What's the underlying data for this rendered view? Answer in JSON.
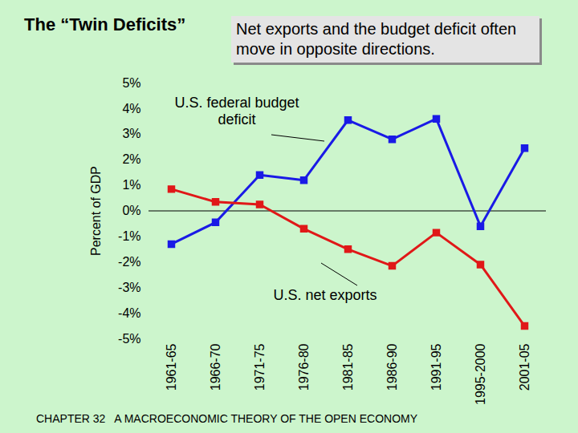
{
  "chart_data": {
    "type": "line",
    "title": "The “Twin Deficits”",
    "subtitle": "Net exports and the budget deficit often move in opposite directions.",
    "caption": "CHAPTER 32   A MACROECONOMIC THEORY OF THE OPEN ECONOMY",
    "ylabel": "Percent of GDP",
    "categories": [
      "1961-65",
      "1966-70",
      "1971-75",
      "1976-80",
      "1981-85",
      "1986-90",
      "1991-95",
      "1995-2000",
      "2001-05"
    ],
    "series": [
      {
        "name": "U.S. federal budget deficit",
        "color": "#1a1ae6",
        "marker": "square",
        "values": [
          -1.3,
          -0.45,
          1.4,
          1.2,
          3.55,
          2.8,
          3.6,
          -0.6,
          2.45
        ]
      },
      {
        "name": "U.S. net exports",
        "color": "#e01818",
        "marker": "square",
        "values": [
          0.85,
          0.35,
          0.25,
          -0.7,
          -1.5,
          -2.15,
          -0.85,
          -2.1,
          -4.5
        ]
      }
    ],
    "ylim": [
      -5,
      5
    ],
    "yticks": [
      {
        "value": 5,
        "label": "5%"
      },
      {
        "value": 4,
        "label": "4%"
      },
      {
        "value": 3,
        "label": "3%"
      },
      {
        "value": 2,
        "label": "2%"
      },
      {
        "value": 1,
        "label": "1%"
      },
      {
        "value": 0,
        "label": "0%"
      },
      {
        "value": -1,
        "label": "-1%"
      },
      {
        "value": -2,
        "label": "-2%"
      },
      {
        "value": -3,
        "label": "-3%"
      },
      {
        "value": -4,
        "label": "-4%"
      },
      {
        "value": -5,
        "label": "-5%"
      }
    ]
  }
}
